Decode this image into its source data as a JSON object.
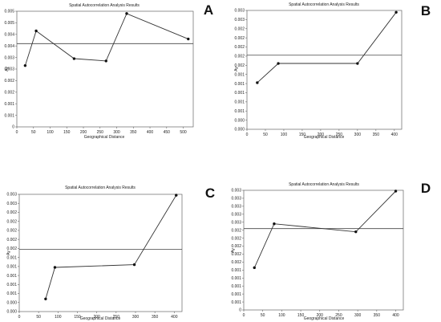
{
  "chart_data": [
    {
      "type": "line",
      "panel": "A",
      "title": "Spatial Autocorrelation Analysis Results",
      "xlabel": "Geographical Distance",
      "ylabel": "Ay",
      "xticks": [
        0,
        50,
        100,
        150,
        200,
        250,
        300,
        350,
        400,
        450,
        500
      ],
      "yticks": [
        "0",
        "0.001",
        "0.001",
        "0.002",
        "0.002",
        "0.003",
        "0.003",
        "0.004",
        "0.004",
        "0.005",
        "0.005"
      ],
      "xlim": [
        0,
        530
      ],
      "ylim": [
        0,
        10
      ],
      "reference_y": 7.2,
      "series": [
        {
          "x": [
            25,
            58,
            172,
            268,
            330,
            515
          ],
          "y": [
            5.3,
            8.3,
            5.9,
            5.7,
            9.8,
            7.6
          ]
        }
      ]
    },
    {
      "type": "line",
      "panel": "B",
      "title": "Spatial Autocorrelation Analysis Results",
      "xlabel": "Geographical Distance",
      "ylabel": "Ay",
      "xticks": [
        0,
        50,
        100,
        150,
        200,
        250,
        300,
        350,
        400
      ],
      "yticks": [
        "0.000",
        "0.000",
        "0.001",
        "0.001",
        "0.001",
        "0.001",
        "0.001",
        "0.002",
        "0.002",
        "0.002",
        "0.002",
        "0.002",
        "0.003",
        "0.003"
      ],
      "xlim": [
        0,
        420
      ],
      "ylim": [
        0,
        13
      ],
      "reference_y": 8.1,
      "series": [
        {
          "x": [
            28,
            85,
            300,
            405
          ],
          "y": [
            5.1,
            7.2,
            7.2,
            12.8
          ]
        }
      ]
    },
    {
      "type": "line",
      "panel": "C",
      "title": "Spatial Autocorrelation Analysis Results",
      "xlabel": "Geographical Distance",
      "ylabel": "Ay",
      "xticks": [
        0,
        50,
        100,
        150,
        200,
        250,
        300,
        350,
        400
      ],
      "yticks": [
        "0.000",
        "0.000",
        "0.001",
        "0.001",
        "0.001",
        "0.001",
        "0.001",
        "0.002",
        "0.002",
        "0.002",
        "0.002",
        "0.002",
        "0.003",
        "0.003"
      ],
      "xlim": [
        0,
        420
      ],
      "ylim": [
        0,
        13
      ],
      "reference_y": 6.9,
      "series": [
        {
          "x": [
            68,
            92,
            297,
            405
          ],
          "y": [
            1.4,
            4.9,
            5.2,
            12.9
          ]
        }
      ]
    },
    {
      "type": "line",
      "panel": "D",
      "title": "Spatial Autocorrelation Analysis Results",
      "xlabel": "Geographical Distance",
      "ylabel": "Ay",
      "xticks": [
        0,
        50,
        100,
        150,
        200,
        250,
        300,
        350,
        400
      ],
      "yticks": [
        "0",
        "0.001",
        "0.001",
        "0.001",
        "0.001",
        "0.001",
        "0.002",
        "0.002",
        "0.002",
        "0.002",
        "0.002",
        "0.003",
        "0.003",
        "0.003",
        "0.003",
        "0.003"
      ],
      "xlim": [
        0,
        420
      ],
      "ylim": [
        0,
        15
      ],
      "reference_y": 10.2,
      "series": [
        {
          "x": [
            28,
            80,
            295,
            400
          ],
          "y": [
            5.3,
            10.8,
            9.8,
            14.9
          ]
        }
      ]
    }
  ]
}
